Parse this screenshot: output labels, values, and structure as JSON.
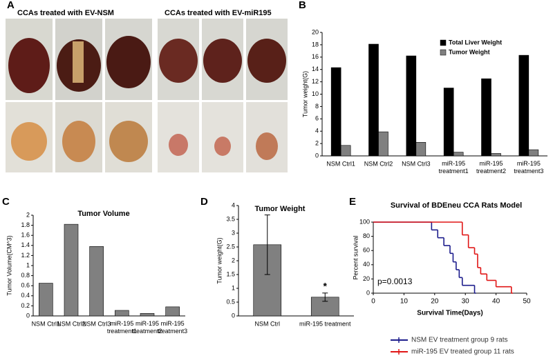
{
  "panels": [
    "A",
    "B",
    "C",
    "D",
    "E"
  ],
  "photos": {
    "left_title": "CCAs treated with EV-NSM",
    "right_title": "CCAs treated with EV-miR195"
  },
  "chart_data": [
    {
      "type": "bar",
      "y_label": "Tumor weight(G)",
      "categories": [
        "NSM Ctrl1",
        "NSM Ctrl2",
        "NSM Ctrl3",
        "miR-195 treatment1",
        "miR-195 treatment2",
        "miR-195 treatment3"
      ],
      "series": [
        {
          "name": "Total Liver Weight",
          "color": "#000000",
          "values": [
            14.3,
            18.1,
            16.2,
            11.0,
            12.5,
            16.3
          ]
        },
        {
          "name": "Tumor  Weight",
          "color": "#808080",
          "values": [
            1.7,
            3.9,
            2.2,
            0.6,
            0.4,
            1.0
          ]
        }
      ],
      "ylim": [
        0,
        20
      ],
      "yticks": [
        0,
        2,
        4,
        6,
        8,
        10,
        12,
        14,
        16,
        18,
        20
      ],
      "legend": "upper right"
    },
    {
      "type": "bar",
      "title": "Tumor Volume",
      "y_label": "Tumor Volume(CM^3)",
      "categories": [
        "NSM Ctrl1",
        "NSM Ctrl2",
        "NSM Ctrl3",
        "miR-195 treatment1",
        "miR-195 treatment2",
        "miR-195 treatment3"
      ],
      "values": [
        0.65,
        1.82,
        1.38,
        0.11,
        0.05,
        0.18
      ],
      "color": "#808080",
      "ylim": [
        0,
        2
      ],
      "yticks": [
        0,
        0.2,
        0.4,
        0.6,
        0.8,
        1,
        1.2,
        1.4,
        1.6,
        1.8,
        2
      ]
    },
    {
      "type": "bar",
      "title": "Tumor Weight",
      "y_label": "Tumor weight(G)",
      "categories": [
        "NSM Ctrl",
        "miR-195 treatment"
      ],
      "values": [
        2.58,
        0.68
      ],
      "errors": [
        1.08,
        0.15
      ],
      "color": "#808080",
      "annotation": "*",
      "ylim": [
        0,
        4
      ],
      "yticks": [
        0,
        0.5,
        1,
        1.5,
        2,
        2.5,
        3,
        3.5,
        4
      ]
    },
    {
      "type": "step",
      "title": "Survival of BDEneu CCA Rats Model",
      "x_label": "Survival Time(Days)",
      "y_label": "Percent survival",
      "annotation": "p=0.0013",
      "series": [
        {
          "name": "NSM EV treatment group 9 rats",
          "color": "#1c1c8c",
          "x": [
            0,
            19,
            21,
            23,
            25,
            26,
            27,
            28,
            29,
            33
          ],
          "values": [
            100,
            89,
            78,
            67,
            56,
            44,
            33,
            22,
            11,
            0
          ]
        },
        {
          "name": "miR-195 EV  treated group 11 rats",
          "color": "#e01414",
          "x": [
            0,
            29,
            31,
            33,
            34,
            35,
            37,
            40,
            45
          ],
          "values": [
            100,
            82,
            64,
            55,
            36,
            27,
            18,
            9,
            0
          ]
        }
      ],
      "xlim": [
        0,
        50
      ],
      "xticks": [
        0,
        10,
        20,
        30,
        40,
        50
      ],
      "ylim": [
        0,
        100
      ],
      "yticks": [
        0,
        20,
        40,
        60,
        80,
        100
      ],
      "legend": "below"
    }
  ]
}
